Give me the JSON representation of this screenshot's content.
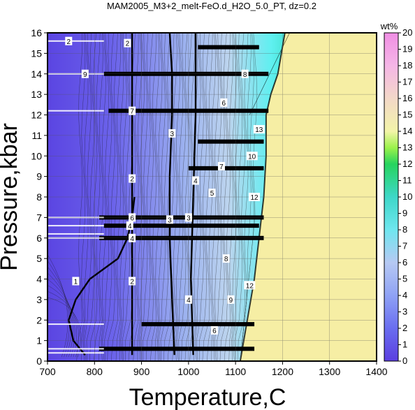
{
  "chart_data": {
    "type": "heatmap",
    "title": "MAM2005_M3+2_melt-FeO.d_H2O_5.0_PT, dz=0.2",
    "xlabel": "Temperature,C",
    "ylabel": "Pressure,kbar",
    "xlim": [
      700,
      1400
    ],
    "ylim": [
      0,
      16
    ],
    "xticks": [
      700,
      800,
      900,
      1000,
      1100,
      1200,
      1300,
      1400
    ],
    "yticks": [
      0,
      1,
      2,
      3,
      4,
      5,
      6,
      7,
      8,
      9,
      10,
      11,
      12,
      13,
      14,
      15,
      16
    ],
    "grid": true,
    "colorbar": {
      "title": "wt%",
      "min": 0,
      "max": 20,
      "ticks": [
        0,
        1,
        2,
        3,
        4,
        5,
        6,
        7,
        8,
        9,
        10,
        11,
        12,
        13,
        14,
        15,
        16,
        17,
        18,
        19,
        20
      ],
      "colors": [
        {
          "v": 0,
          "c": "#5b3fe0"
        },
        {
          "v": 2,
          "c": "#6a6ef0"
        },
        {
          "v": 4,
          "c": "#8fa2f5"
        },
        {
          "v": 6,
          "c": "#b6c9f3"
        },
        {
          "v": 8,
          "c": "#6fe6ef"
        },
        {
          "v": 10,
          "c": "#3ed7c8"
        },
        {
          "v": 12,
          "c": "#26d45e"
        },
        {
          "v": 13,
          "c": "#9bf24b"
        },
        {
          "v": 14,
          "c": "#f3f4a9"
        },
        {
          "v": 16,
          "c": "#f3d8c8"
        },
        {
          "v": 18,
          "c": "#f5b6e6"
        },
        {
          "v": 20,
          "c": "#f08ee4"
        }
      ]
    },
    "solidus_line_kbar_C": [
      [
        1110,
        0
      ],
      [
        1125,
        2
      ],
      [
        1140,
        4
      ],
      [
        1150,
        6
      ],
      [
        1160,
        8
      ],
      [
        1165,
        10
      ],
      [
        1165,
        12
      ],
      [
        1175,
        13
      ],
      [
        1190,
        14
      ],
      [
        1205,
        16
      ]
    ],
    "field_above_liquidus_value": 14.3,
    "contours": [
      {
        "value": 1,
        "points": [
          [
            780,
            0.3
          ],
          [
            755,
            1.0
          ],
          [
            745,
            2.0
          ],
          [
            760,
            3.0
          ],
          [
            790,
            4.0
          ],
          [
            850,
            5.0
          ],
          [
            870,
            6.0
          ],
          [
            880,
            7.0
          ],
          [
            885,
            8.0
          ]
        ]
      },
      {
        "value": 2,
        "points": [
          [
            880,
            0.3
          ],
          [
            880,
            2
          ],
          [
            880,
            4
          ],
          [
            880,
            6
          ],
          [
            880,
            8
          ],
          [
            880,
            10
          ],
          [
            880,
            12
          ],
          [
            880,
            14
          ],
          [
            880,
            16
          ]
        ]
      },
      {
        "value": 3,
        "points": [
          [
            970,
            0.3
          ],
          [
            965,
            3
          ],
          [
            960,
            6
          ],
          [
            960,
            9
          ],
          [
            965,
            12
          ],
          [
            965,
            14
          ],
          [
            960,
            16
          ]
        ]
      },
      {
        "value": 4,
        "points": [
          [
            1010,
            0.3
          ],
          [
            1005,
            4
          ],
          [
            1010,
            8
          ],
          [
            1015,
            12
          ],
          [
            1015,
            16
          ]
        ]
      }
    ],
    "contour_labels": [
      {
        "text": "2",
        "x": 745,
        "y": 15.6
      },
      {
        "text": "2",
        "x": 870,
        "y": 15.5
      },
      {
        "text": "2",
        "x": 880,
        "y": 8.9
      },
      {
        "text": "1",
        "x": 760,
        "y": 3.9
      },
      {
        "text": "2",
        "x": 880,
        "y": 3.9
      },
      {
        "text": "3",
        "x": 965,
        "y": 11.1
      },
      {
        "text": "3",
        "x": 960,
        "y": 6.9
      },
      {
        "text": "4",
        "x": 1015,
        "y": 8.8
      },
      {
        "text": "4",
        "x": 1000,
        "y": 3.0
      },
      {
        "text": "7",
        "x": 880,
        "y": 12.2
      },
      {
        "text": "6",
        "x": 880,
        "y": 7.0
      },
      {
        "text": "4",
        "x": 875,
        "y": 6.6
      },
      {
        "text": "4",
        "x": 880,
        "y": 6.0
      },
      {
        "text": "9",
        "x": 780,
        "y": 14.0
      },
      {
        "text": "3",
        "x": 1000,
        "y": 7.0
      },
      {
        "text": "8",
        "x": 1120,
        "y": 14.0
      },
      {
        "text": "10",
        "x": 1135,
        "y": 10.0
      },
      {
        "text": "12",
        "x": 1140,
        "y": 8.0
      },
      {
        "text": "12",
        "x": 1130,
        "y": 3.7
      },
      {
        "text": "13",
        "x": 1150,
        "y": 11.3
      },
      {
        "text": "6",
        "x": 1075,
        "y": 12.6
      },
      {
        "text": "8",
        "x": 1080,
        "y": 5.0
      },
      {
        "text": "7",
        "x": 1070,
        "y": 9.5
      },
      {
        "text": "9",
        "x": 1090,
        "y": 3.0
      },
      {
        "text": "5",
        "x": 1050,
        "y": 8.2
      },
      {
        "text": "6",
        "x": 1055,
        "y": 1.5
      }
    ]
  }
}
